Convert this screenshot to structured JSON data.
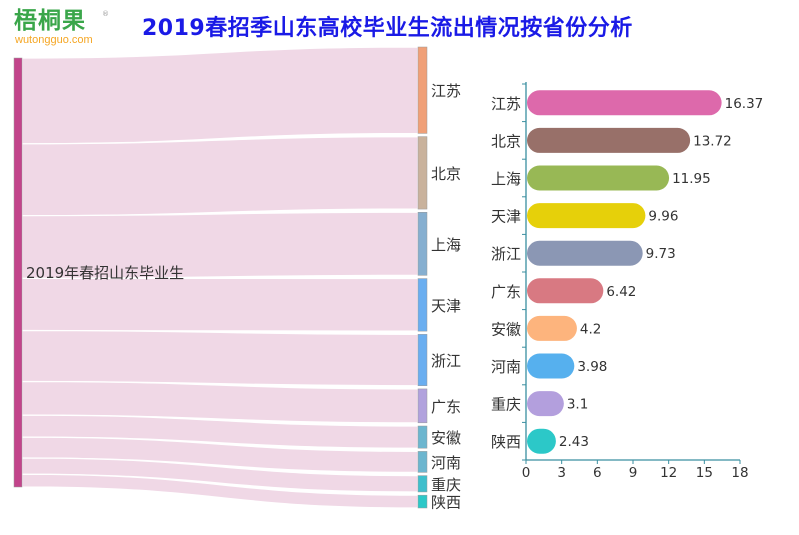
{
  "logo": {
    "cn": "梧桐果",
    "en": "wutongguo.com",
    "reg": "®"
  },
  "page_title": "2019春招季山东高校毕业生流出情况按省份分析",
  "chart_data": [
    {
      "type": "sankey",
      "title": "2019春招季山东高校毕业生流出情况按省份分析",
      "source": {
        "name": "2019年春招山东毕业生",
        "color": "#c2448b"
      },
      "link_color": "#f0d8e6",
      "targets": [
        {
          "name": "江苏",
          "value": 16.37,
          "color": "#f0a078"
        },
        {
          "name": "北京",
          "value": 13.72,
          "color": "#c9b29c"
        },
        {
          "name": "上海",
          "value": 11.95,
          "color": "#86afd0"
        },
        {
          "name": "天津",
          "value": 9.96,
          "color": "#6aaef0"
        },
        {
          "name": "浙江",
          "value": 9.73,
          "color": "#6aaef0"
        },
        {
          "name": "广东",
          "value": 6.42,
          "color": "#b1a2dd"
        },
        {
          "name": "安徽",
          "value": 4.2,
          "color": "#6cb6cf"
        },
        {
          "name": "河南",
          "value": 3.98,
          "color": "#6cb6cf"
        },
        {
          "name": "重庆",
          "value": 3.1,
          "color": "#3fbfcc"
        },
        {
          "name": "陕西",
          "value": 2.43,
          "color": "#2cc8c8"
        }
      ]
    },
    {
      "type": "bar",
      "orientation": "horizontal",
      "categories": [
        "江苏",
        "北京",
        "上海",
        "天津",
        "浙江",
        "广东",
        "安徽",
        "河南",
        "重庆",
        "陕西"
      ],
      "values": [
        16.37,
        13.72,
        11.95,
        9.96,
        9.73,
        6.42,
        4.2,
        3.98,
        3.1,
        2.43
      ],
      "colors": [
        "#dd69ab",
        "#987069",
        "#98b855",
        "#e6d00a",
        "#8b97b4",
        "#d87982",
        "#fdb47d",
        "#56b0ee",
        "#b39fdd",
        "#2cc8c8"
      ],
      "xlim": [
        0,
        18
      ],
      "xticks": [
        "0",
        "3",
        "6",
        "9",
        "12",
        "15",
        "18"
      ],
      "axis_color": "#3a8fa0",
      "xlabel": "",
      "ylabel": "",
      "grid": false,
      "data_labels": true
    }
  ]
}
